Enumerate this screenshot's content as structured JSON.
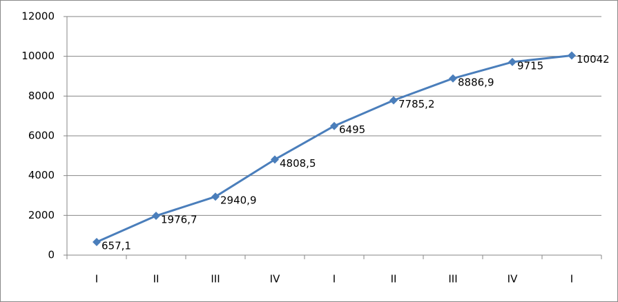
{
  "chart_data": {
    "type": "line",
    "categories": [
      "I",
      "II",
      "III",
      "IV",
      "I",
      "II",
      "III",
      "IV",
      "I"
    ],
    "series": [
      {
        "color": "#4a7ebb",
        "values": [
          657.1,
          1976.7,
          2940.9,
          4808.5,
          6495,
          7785.2,
          8886.9,
          9715,
          10042
        ],
        "value_labels": [
          "657,1",
          "1976,7",
          "2940,9",
          "4808,5",
          "6495",
          "7785,2",
          "8886,9",
          "9715",
          "10042"
        ]
      }
    ],
    "ylim": [
      0,
      12000
    ],
    "yticks": [
      0,
      2000,
      4000,
      6000,
      8000,
      10000,
      12000
    ],
    "grid": true
  }
}
